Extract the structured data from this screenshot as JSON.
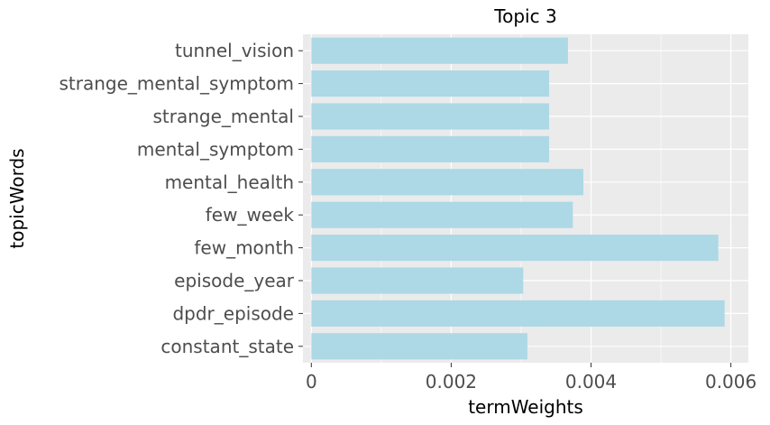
{
  "chart_data": {
    "type": "bar",
    "orientation": "horizontal",
    "title": "Topic 3",
    "xlabel": "termWeights",
    "ylabel": "topicWords",
    "categories": [
      "tunnel_vision",
      "strange_mental_symptom",
      "strange_mental",
      "mental_symptom",
      "mental_health",
      "few_week",
      "few_month",
      "episode_year",
      "dpdr_episode",
      "constant_state"
    ],
    "values": [
      0.00367,
      0.0034,
      0.0034,
      0.0034,
      0.00389,
      0.00374,
      0.00582,
      0.00303,
      0.00591,
      0.00309
    ],
    "xlim": [
      -0.00012,
      0.00625
    ],
    "xticks": [
      0,
      0.002,
      0.004,
      0.006
    ],
    "xtick_labels": [
      "0",
      "0.002",
      "0.004",
      "0.006"
    ],
    "grid": true,
    "bar_color": "#add8e6",
    "panel_background": "#ebebeb",
    "grid_color": "#ffffff"
  }
}
